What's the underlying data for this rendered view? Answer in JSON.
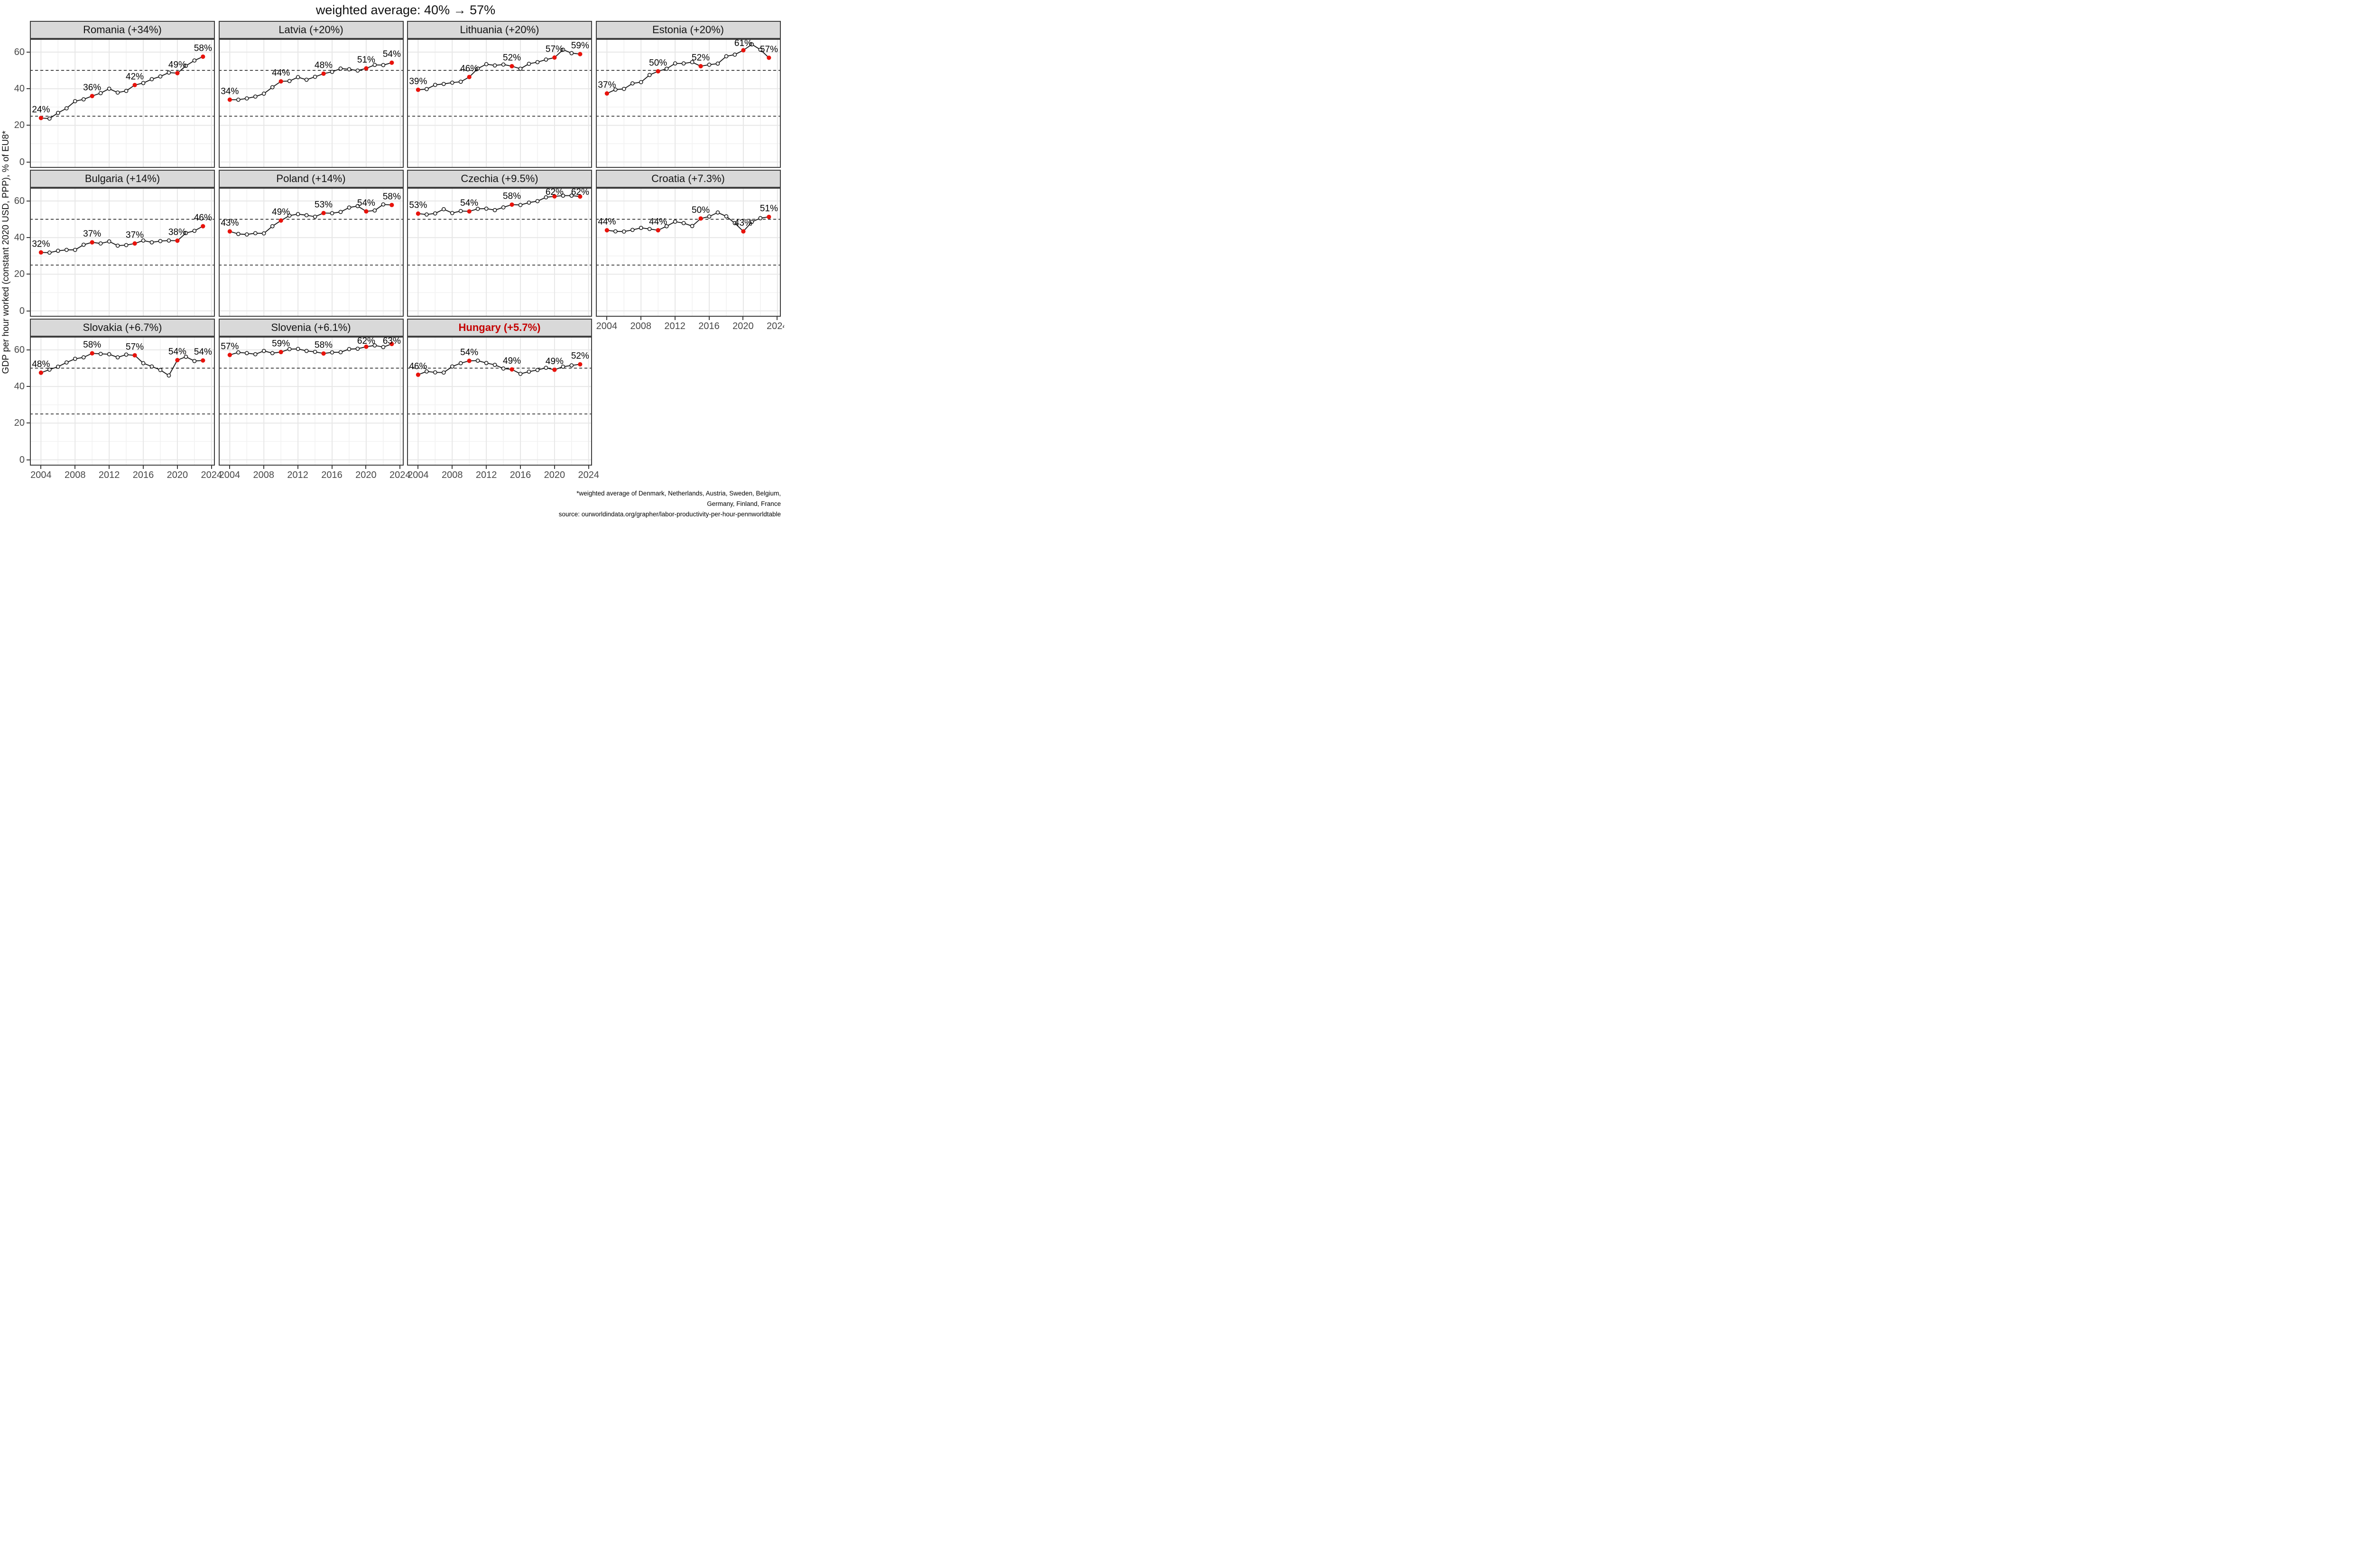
{
  "title": "weighted average: 40% → 57%",
  "y_axis_title": "GDP per hour worked (constant 2020 USD, PPP), % of EU8*",
  "footnote": {
    "line1": "*weighted average of Denmark, Netherlands, Austria, Sweden, Belgium,",
    "line2": "Germany, Finland, France",
    "line3": "source: ourworldindata.org/grapher/labor-productivity-per-hour-pennworldtable"
  },
  "colors": {
    "highlight_title": "#c40000",
    "marker_red": "#e8130c",
    "line": "#1a1a1a",
    "open_marker_fill": "#ffffff",
    "strip_bg": "#d9d9d9",
    "panel_border": "#3f3f3f",
    "grid_major": "#e7e7e7",
    "grid_minor": "#f2f2f2",
    "ref_line": "#000000",
    "tick_text": "#474747"
  },
  "chart_data": {
    "type": "line",
    "x": [
      2004,
      2005,
      2006,
      2007,
      2008,
      2009,
      2010,
      2011,
      2012,
      2013,
      2014,
      2015,
      2016,
      2017,
      2018,
      2019,
      2020,
      2021,
      2022,
      2023
    ],
    "xlabel": "",
    "ylabel": "GDP per hour worked (constant 2020 USD, PPP), % of EU8*",
    "xticks": [
      2004,
      2008,
      2012,
      2016,
      2020,
      2024
    ],
    "yticks": [
      0,
      20,
      40,
      60
    ],
    "minor_xgrid": [
      2006,
      2010,
      2014,
      2018,
      2022
    ],
    "minor_ygrid": [
      10,
      30,
      50,
      70
    ],
    "ref_lines": [
      25,
      50
    ],
    "xlim": [
      2002.7,
      2024.4
    ],
    "ylim": [
      -3.2,
      67.2
    ],
    "grid": "on",
    "legend_position": "none",
    "label_years": [
      2004,
      2010,
      2015,
      2020,
      2023
    ],
    "facets": [
      {
        "title": "Romania (+34%)",
        "country": "romania",
        "highlight": false,
        "values": [
          24,
          23.7,
          26.8,
          29.3,
          33.2,
          34.2,
          36,
          37.6,
          40,
          37.9,
          38.8,
          42,
          43.1,
          45.2,
          46.7,
          48.8,
          48.5,
          52.5,
          55.4,
          57.5
        ],
        "labels": [
          "24%",
          "36%",
          "42%",
          "49%",
          "58%"
        ]
      },
      {
        "title": "Latvia (+20%)",
        "country": "latvia",
        "highlight": false,
        "values": [
          34,
          34,
          34.7,
          35.7,
          37.3,
          40.8,
          44,
          44.2,
          46.3,
          44.9,
          46.5,
          48.2,
          49.2,
          51,
          50.6,
          49.9,
          51.1,
          53,
          52.9,
          54.2
        ],
        "labels": [
          "34%",
          "44%",
          "48%",
          "51%",
          "54%"
        ]
      },
      {
        "title": "Lithuania (+20%)",
        "country": "lithuania",
        "highlight": false,
        "values": [
          39.4,
          39.8,
          42.1,
          42.6,
          43.3,
          43.8,
          46.4,
          51,
          53.4,
          52.7,
          53.2,
          52.3,
          50.9,
          53.6,
          54.5,
          55.9,
          57,
          61.3,
          59.4,
          58.9
        ],
        "labels": [
          "39%",
          "46%",
          "52%",
          "57%",
          "59%"
        ]
      },
      {
        "title": "Estonia (+20%)",
        "country": "estonia",
        "highlight": false,
        "values": [
          37.4,
          39.5,
          39.9,
          42.9,
          43.6,
          47.5,
          49.5,
          50.9,
          53.8,
          53.8,
          54.5,
          52.3,
          53.1,
          53.7,
          57.7,
          58.6,
          61,
          64.2,
          61.3,
          56.9
        ],
        "labels": [
          "37%",
          "50%",
          "52%",
          "61%",
          "57%"
        ]
      },
      {
        "title": "Bulgaria (+14%)",
        "country": "bulgaria",
        "highlight": false,
        "values": [
          31.9,
          31.8,
          32.8,
          33.3,
          33.3,
          36.1,
          37.4,
          36.8,
          37.9,
          35.6,
          35.9,
          36.8,
          38.4,
          37.4,
          38.1,
          38.4,
          38.3,
          42.5,
          43.7,
          46.2
        ],
        "labels": [
          "32%",
          "37%",
          "37%",
          "38%",
          "46%"
        ]
      },
      {
        "title": "Poland (+14%)",
        "country": "poland",
        "highlight": false,
        "values": [
          43.4,
          42,
          41.7,
          42.4,
          42.3,
          46.2,
          49.3,
          52,
          52.8,
          52.2,
          51.4,
          53.4,
          53.3,
          54,
          56.4,
          57.2,
          54.3,
          54.8,
          58.1,
          57.8
        ],
        "labels": [
          "43%",
          "49%",
          "53%",
          "54%",
          "58%"
        ]
      },
      {
        "title": "Czechia (+9.5%)",
        "country": "czechia",
        "highlight": false,
        "values": [
          53.1,
          52.6,
          53.2,
          55.5,
          53.4,
          54.5,
          54.3,
          55.7,
          55.8,
          55,
          56.5,
          58,
          57.8,
          59.1,
          59.9,
          62,
          62.5,
          62.9,
          62.9,
          62.4
        ],
        "labels": [
          "53%",
          "54%",
          "58%",
          "62%",
          "62%"
        ]
      },
      {
        "title": "Croatia (+7.3%)",
        "country": "croatia",
        "highlight": false,
        "values": [
          44,
          43.4,
          43.3,
          44.2,
          45.3,
          44.7,
          44,
          46.2,
          48.7,
          47.9,
          46.3,
          50.4,
          51.5,
          53.7,
          51.6,
          47.9,
          43.4,
          48.6,
          50.6,
          51.3
        ],
        "labels": [
          "44%",
          "44%",
          "50%",
          "43%",
          "51%"
        ]
      },
      {
        "title": "Slovakia (+6.7%)",
        "country": "slovakia",
        "highlight": false,
        "values": [
          47.5,
          49.2,
          50.8,
          53.1,
          55.1,
          55.9,
          58.1,
          57.8,
          57.6,
          55.9,
          57.4,
          57,
          52.7,
          50.9,
          49,
          46,
          54.4,
          56.2,
          53.9,
          54.2
        ],
        "labels": [
          "48%",
          "58%",
          "57%",
          "54%",
          "54%"
        ]
      },
      {
        "title": "Slovenia (+6.1%)",
        "country": "slovenia",
        "highlight": false,
        "values": [
          57.2,
          58.6,
          58.2,
          57.6,
          59.4,
          58.2,
          58.8,
          60.4,
          60.5,
          59.4,
          58.9,
          58,
          58.6,
          58.7,
          60.4,
          60.6,
          61.7,
          62.4,
          61.5,
          63.2
        ],
        "labels": [
          "57%",
          "59%",
          "58%",
          "62%",
          "63%"
        ]
      },
      {
        "title": "Hungary (+5.7%)",
        "country": "hungary",
        "highlight": true,
        "values": [
          46.4,
          48.2,
          47.7,
          47.6,
          50.9,
          52.7,
          54,
          54.1,
          52.8,
          51.8,
          49.8,
          49.3,
          46.9,
          48.1,
          49,
          50.2,
          49.1,
          50.8,
          51.5,
          52.1
        ],
        "labels": [
          "46%",
          "54%",
          "49%",
          "49%",
          "52%"
        ]
      }
    ]
  }
}
